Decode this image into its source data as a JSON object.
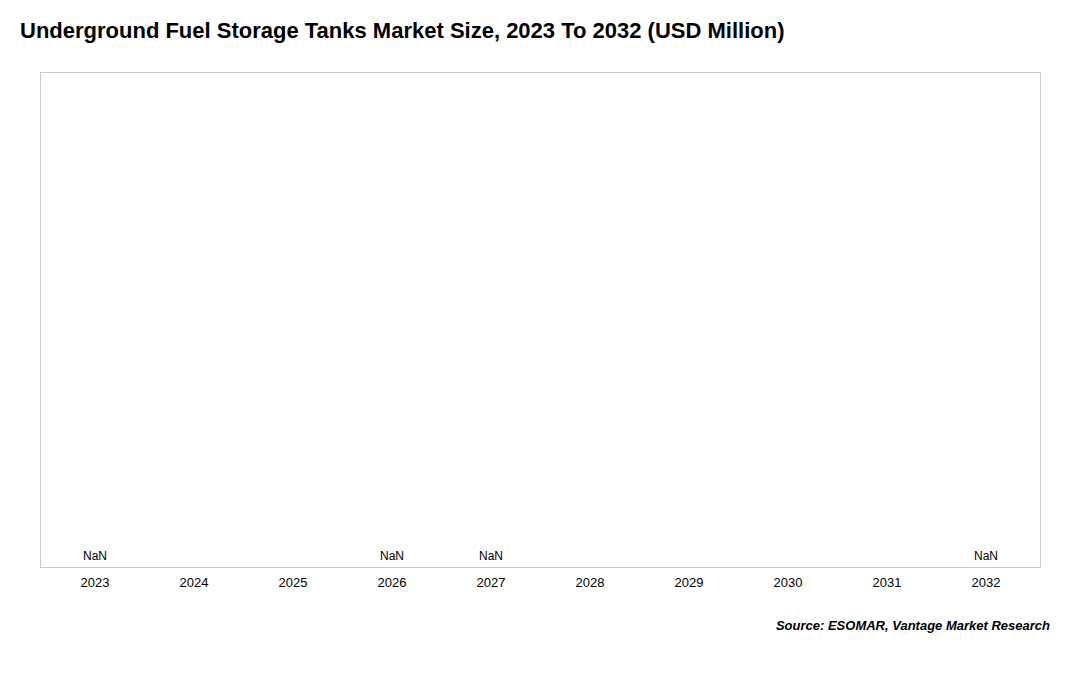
{
  "chart_data": {
    "type": "bar",
    "title": "Underground Fuel Storage Tanks Market Size, 2023 To 2032 (USD Million)",
    "caption": "Source: ESOMAR, Vantage Market Research",
    "categories": [
      2023,
      2024,
      2025,
      2026,
      2027,
      2028,
      2029,
      2030,
      2031,
      2032
    ],
    "values": [
      null,
      null,
      null,
      null,
      null,
      null,
      null,
      null,
      null,
      null
    ],
    "value_labels": [
      "NaN",
      null,
      null,
      "NaN",
      "NaN",
      null,
      null,
      null,
      null,
      "NaN"
    ],
    "data_labels": true,
    "ylim": [
      0,
      1
    ],
    "grid": false,
    "tick_labels": "x"
  }
}
